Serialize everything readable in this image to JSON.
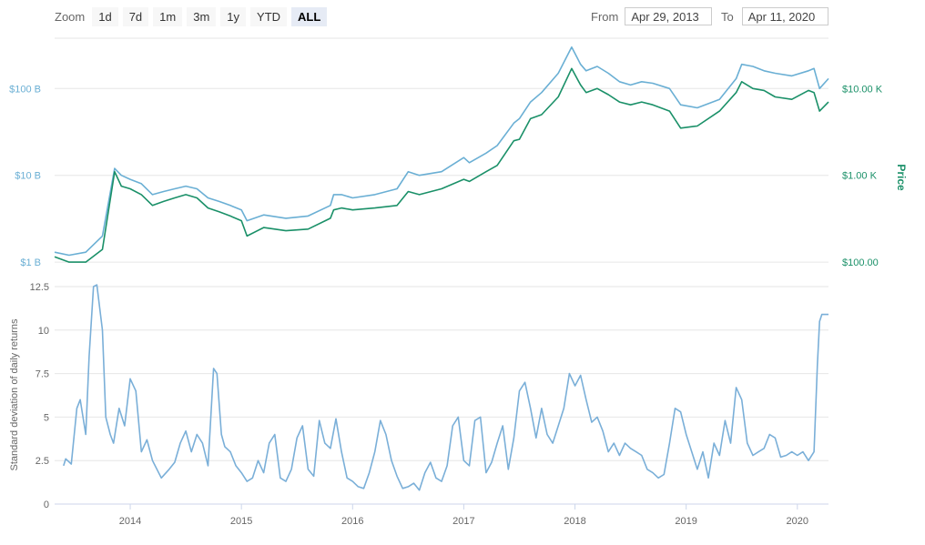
{
  "zoom": {
    "label": "Zoom",
    "buttons": [
      "1d",
      "7d",
      "1m",
      "3m",
      "1y",
      "YTD",
      "ALL"
    ],
    "active": "ALL"
  },
  "range": {
    "from_label": "From",
    "from_value": "Apr 29, 2013",
    "to_label": "To",
    "to_value": "Apr 11, 2020"
  },
  "colors": {
    "market_cap": "#6aafd4",
    "price": "#1a9068",
    "volatility": "#7aafd8",
    "left_axis": "#6aafd4",
    "right_axis": "#1a9068",
    "grid": "#e6e6e6"
  },
  "chart_data": [
    {
      "type": "line",
      "scale": "log",
      "xlim": [
        2013.32,
        2020.28
      ],
      "left_axis": {
        "ticks": [
          "$1 B",
          "$10 B",
          "$100 B"
        ],
        "tick_values": [
          1,
          10,
          100
        ],
        "ylim": [
          0.75,
          380
        ]
      },
      "right_axis": {
        "label": "Price",
        "ticks": [
          "$100.00",
          "$1.00 K",
          "$10.00 K"
        ],
        "tick_values": [
          100,
          1000,
          10000
        ],
        "ylim": [
          75,
          38000
        ]
      },
      "series": [
        {
          "key": "market_cap",
          "axis": "left",
          "x": [
            2013.32,
            2013.45,
            2013.6,
            2013.75,
            2013.86,
            2013.92,
            2014.0,
            2014.1,
            2014.2,
            2014.3,
            2014.4,
            2014.5,
            2014.6,
            2014.7,
            2014.8,
            2014.9,
            2015.0,
            2015.05,
            2015.2,
            2015.4,
            2015.6,
            2015.8,
            2015.83,
            2015.9,
            2016.0,
            2016.2,
            2016.4,
            2016.5,
            2016.6,
            2016.8,
            2017.0,
            2017.05,
            2017.2,
            2017.3,
            2017.45,
            2017.5,
            2017.6,
            2017.7,
            2017.85,
            2017.97,
            2018.05,
            2018.1,
            2018.2,
            2018.3,
            2018.4,
            2018.5,
            2018.6,
            2018.7,
            2018.85,
            2018.95,
            2019.1,
            2019.3,
            2019.45,
            2019.5,
            2019.6,
            2019.7,
            2019.8,
            2019.95,
            2020.1,
            2020.15,
            2020.2,
            2020.28
          ],
          "y": [
            1.3,
            1.2,
            1.3,
            2.0,
            12.0,
            10.0,
            9.0,
            8.0,
            6.0,
            6.5,
            7.0,
            7.5,
            7.0,
            5.5,
            5.0,
            4.5,
            4.0,
            3.0,
            3.5,
            3.2,
            3.4,
            4.5,
            6.0,
            6.0,
            5.5,
            6.0,
            7.0,
            11.0,
            10.0,
            11.0,
            16.0,
            14.0,
            18.0,
            22.0,
            40.0,
            45.0,
            70.0,
            90.0,
            150.0,
            300.0,
            190.0,
            160.0,
            180.0,
            150.0,
            120.0,
            110.0,
            120.0,
            115.0,
            100.0,
            65.0,
            60.0,
            75.0,
            130.0,
            190.0,
            180.0,
            160.0,
            150.0,
            140.0,
            160.0,
            170.0,
            100.0,
            130.0
          ]
        },
        {
          "key": "price",
          "axis": "right",
          "x": [
            2013.32,
            2013.45,
            2013.6,
            2013.75,
            2013.86,
            2013.92,
            2014.0,
            2014.1,
            2014.2,
            2014.3,
            2014.4,
            2014.5,
            2014.6,
            2014.7,
            2014.8,
            2014.9,
            2015.0,
            2015.05,
            2015.2,
            2015.4,
            2015.6,
            2015.8,
            2015.83,
            2015.9,
            2016.0,
            2016.2,
            2016.4,
            2016.5,
            2016.6,
            2016.8,
            2017.0,
            2017.05,
            2017.2,
            2017.3,
            2017.45,
            2017.5,
            2017.6,
            2017.7,
            2017.85,
            2017.97,
            2018.05,
            2018.1,
            2018.2,
            2018.3,
            2018.4,
            2018.5,
            2018.6,
            2018.7,
            2018.85,
            2018.95,
            2019.1,
            2019.3,
            2019.45,
            2019.5,
            2019.6,
            2019.7,
            2019.8,
            2019.95,
            2020.1,
            2020.15,
            2020.2,
            2020.28
          ],
          "y": [
            115,
            100,
            100,
            140,
            1100,
            750,
            700,
            600,
            450,
            500,
            550,
            600,
            550,
            420,
            380,
            340,
            300,
            200,
            250,
            230,
            240,
            320,
            400,
            420,
            400,
            420,
            450,
            650,
            600,
            700,
            900,
            850,
            1100,
            1300,
            2500,
            2600,
            4500,
            5000,
            8000,
            17000,
            11000,
            9000,
            10000,
            8500,
            7000,
            6500,
            7000,
            6500,
            5500,
            3500,
            3700,
            5500,
            9000,
            12000,
            10000,
            9500,
            8000,
            7500,
            9500,
            9000,
            5500,
            7000
          ]
        }
      ]
    },
    {
      "type": "line",
      "ylabel": "Standard deviation of daily returns",
      "ylim": [
        0,
        12.5
      ],
      "y_ticks": [
        "0",
        "2.5",
        "5",
        "7.5",
        "10",
        "12.5"
      ],
      "y_tick_values": [
        0,
        2.5,
        5,
        7.5,
        10,
        12.5
      ],
      "xlim": [
        2013.32,
        2020.28
      ],
      "x_ticks": [
        "2014",
        "2015",
        "2016",
        "2017",
        "2018",
        "2019",
        "2020"
      ],
      "x_tick_values": [
        2014,
        2015,
        2016,
        2017,
        2018,
        2019,
        2020
      ],
      "series": [
        {
          "key": "volatility",
          "x": [
            2013.4,
            2013.42,
            2013.47,
            2013.52,
            2013.55,
            2013.6,
            2013.63,
            2013.67,
            2013.7,
            2013.75,
            2013.78,
            2013.82,
            2013.85,
            2013.9,
            2013.95,
            2014.0,
            2014.05,
            2014.1,
            2014.15,
            2014.2,
            2014.28,
            2014.35,
            2014.4,
            2014.45,
            2014.5,
            2014.55,
            2014.6,
            2014.65,
            2014.7,
            2014.75,
            2014.78,
            2014.82,
            2014.85,
            2014.9,
            2014.95,
            2015.0,
            2015.05,
            2015.1,
            2015.15,
            2015.2,
            2015.25,
            2015.3,
            2015.35,
            2015.4,
            2015.45,
            2015.5,
            2015.55,
            2015.6,
            2015.65,
            2015.7,
            2015.75,
            2015.8,
            2015.85,
            2015.9,
            2015.95,
            2016.0,
            2016.05,
            2016.1,
            2016.15,
            2016.2,
            2016.25,
            2016.3,
            2016.35,
            2016.4,
            2016.45,
            2016.5,
            2016.55,
            2016.6,
            2016.65,
            2016.7,
            2016.75,
            2016.8,
            2016.85,
            2016.9,
            2016.95,
            2017.0,
            2017.05,
            2017.1,
            2017.15,
            2017.2,
            2017.25,
            2017.3,
            2017.35,
            2017.4,
            2017.45,
            2017.5,
            2017.55,
            2017.6,
            2017.65,
            2017.7,
            2017.75,
            2017.8,
            2017.85,
            2017.9,
            2017.95,
            2018.0,
            2018.05,
            2018.1,
            2018.15,
            2018.2,
            2018.25,
            2018.3,
            2018.35,
            2018.4,
            2018.45,
            2018.5,
            2018.55,
            2018.6,
            2018.65,
            2018.7,
            2018.75,
            2018.8,
            2018.85,
            2018.9,
            2018.95,
            2019.0,
            2019.05,
            2019.1,
            2019.15,
            2019.2,
            2019.25,
            2019.3,
            2019.35,
            2019.4,
            2019.45,
            2019.5,
            2019.55,
            2019.6,
            2019.65,
            2019.7,
            2019.75,
            2019.8,
            2019.85,
            2019.9,
            2019.95,
            2020.0,
            2020.05,
            2020.1,
            2020.15,
            2020.18,
            2020.2,
            2020.22,
            2020.25,
            2020.28
          ],
          "y": [
            2.2,
            2.6,
            2.3,
            5.5,
            6.0,
            4.0,
            8.5,
            12.5,
            12.6,
            10.0,
            5.0,
            4.0,
            3.5,
            5.5,
            4.5,
            7.2,
            6.5,
            3.0,
            3.7,
            2.5,
            1.5,
            2.0,
            2.4,
            3.5,
            4.2,
            3.0,
            4.0,
            3.5,
            2.2,
            7.8,
            7.5,
            4.0,
            3.3,
            3.0,
            2.2,
            1.8,
            1.3,
            1.5,
            2.5,
            1.8,
            3.5,
            4.0,
            1.5,
            1.3,
            2.0,
            3.8,
            4.5,
            2.0,
            1.6,
            4.8,
            3.5,
            3.2,
            4.9,
            3.0,
            1.5,
            1.3,
            1.0,
            0.9,
            1.8,
            3.0,
            4.8,
            4.0,
            2.5,
            1.6,
            0.9,
            1.0,
            1.2,
            0.8,
            1.8,
            2.4,
            1.5,
            1.3,
            2.2,
            4.5,
            5.0,
            2.5,
            2.2,
            4.8,
            5.0,
            1.8,
            2.4,
            3.5,
            4.5,
            2.0,
            3.8,
            6.5,
            7.0,
            5.5,
            3.8,
            5.5,
            4.0,
            3.5,
            4.5,
            5.5,
            7.5,
            6.8,
            7.4,
            6.0,
            4.7,
            5.0,
            4.2,
            3.0,
            3.5,
            2.8,
            3.5,
            3.2,
            3.0,
            2.8,
            2.0,
            1.8,
            1.5,
            1.7,
            3.5,
            5.5,
            5.3,
            4.0,
            3.0,
            2.0,
            3.0,
            1.5,
            3.5,
            2.8,
            4.8,
            3.5,
            6.7,
            6.0,
            3.5,
            2.8,
            3.0,
            3.2,
            4.0,
            3.8,
            2.7,
            2.8,
            3.0,
            2.8,
            3.0,
            2.5,
            3.0,
            8.0,
            10.5,
            10.9,
            10.9,
            10.9
          ]
        }
      ]
    }
  ]
}
